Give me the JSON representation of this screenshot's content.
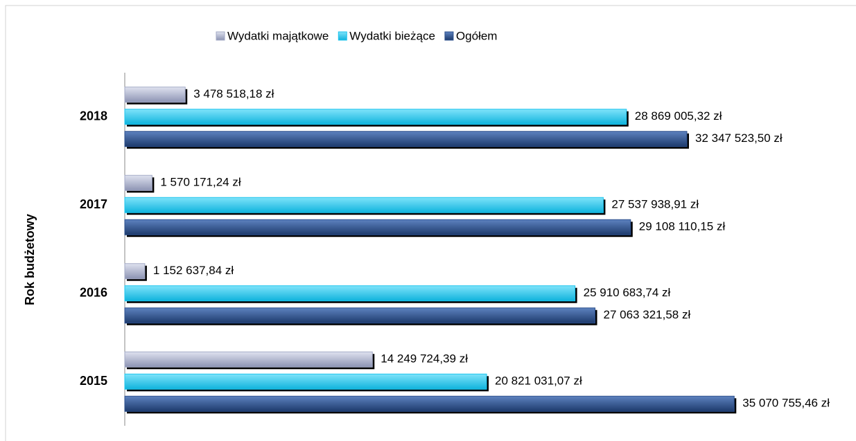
{
  "chart_data": {
    "type": "bar",
    "orientation": "horizontal",
    "y_axis_label": "Rok budżetowy",
    "categories": [
      "2015",
      "2016",
      "2017",
      "2018"
    ],
    "series": [
      {
        "name": "Wydatki majątkowe",
        "color": "#a3aac6",
        "values": [
          14249724.39,
          1152637.84,
          1570171.24,
          3478518.18
        ],
        "value_labels": [
          "14 249 724,39 zł",
          "1 152 637,84 zł",
          "1 570 171,24 zł",
          "3 478 518,18 zł"
        ]
      },
      {
        "name": "Wydatki bieżące",
        "color": "#1cc4ee",
        "values": [
          20821031.07,
          25910683.74,
          27537938.91,
          28869005.32
        ],
        "value_labels": [
          "20 821 031,07 zł",
          "25 910 683,74 zł",
          "27 537 938,91 zł",
          "28 869 005,32 zł"
        ]
      },
      {
        "name": "Ogółem",
        "color": "#2b4f8c",
        "values": [
          35070755.46,
          27063321.58,
          29108110.15,
          32347523.5
        ],
        "value_labels": [
          "35 070 755,46 zł",
          "27 063 321,58 zł",
          "29 108 110,15 zł",
          "32 347 523,50 zł"
        ]
      }
    ],
    "xlim": [
      0,
      42000000
    ],
    "legend": "top"
  }
}
